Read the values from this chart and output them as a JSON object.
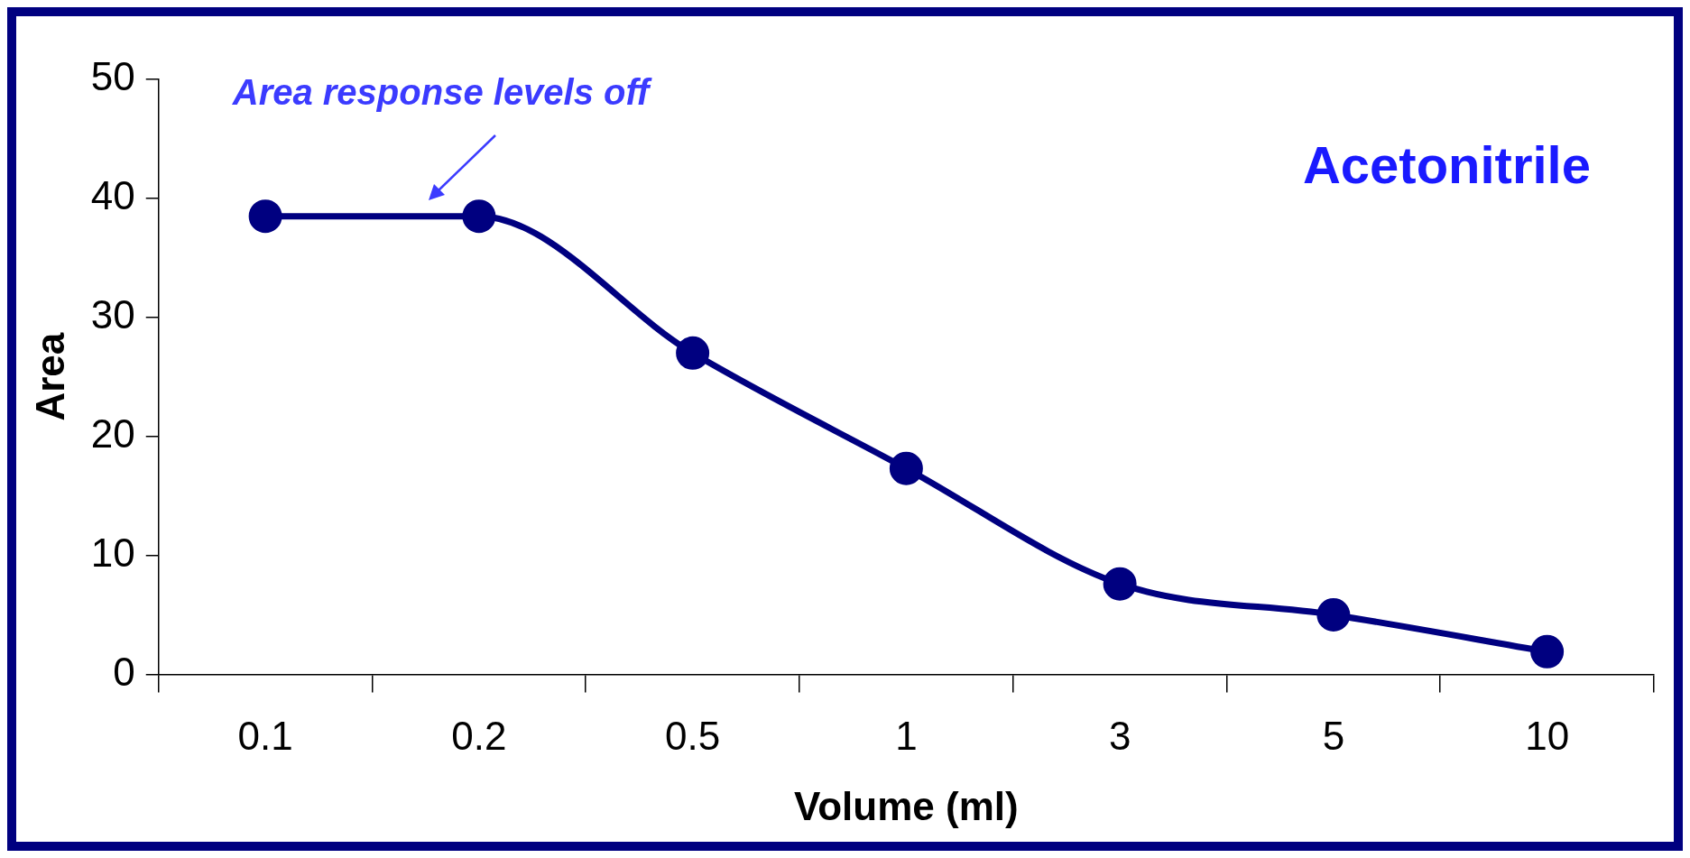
{
  "chart_data": {
    "type": "line",
    "xlabel": "Volume (ml)",
    "ylabel": "Area",
    "categories": [
      "0.1",
      "0.2",
      "0.5",
      "1",
      "3",
      "5",
      "10"
    ],
    "series": [
      {
        "color": "#000080",
        "values": [
          38.5,
          38.5,
          27,
          17.3,
          7.6,
          5,
          1.9
        ]
      }
    ],
    "ylim": [
      0,
      50
    ],
    "yticks": [
      0,
      10,
      20,
      30,
      40,
      50
    ],
    "grid": false,
    "legend": false,
    "marker": "circle",
    "line_style": "solid",
    "annotations": [
      "Area response levels off",
      "Acetonitrile"
    ]
  }
}
